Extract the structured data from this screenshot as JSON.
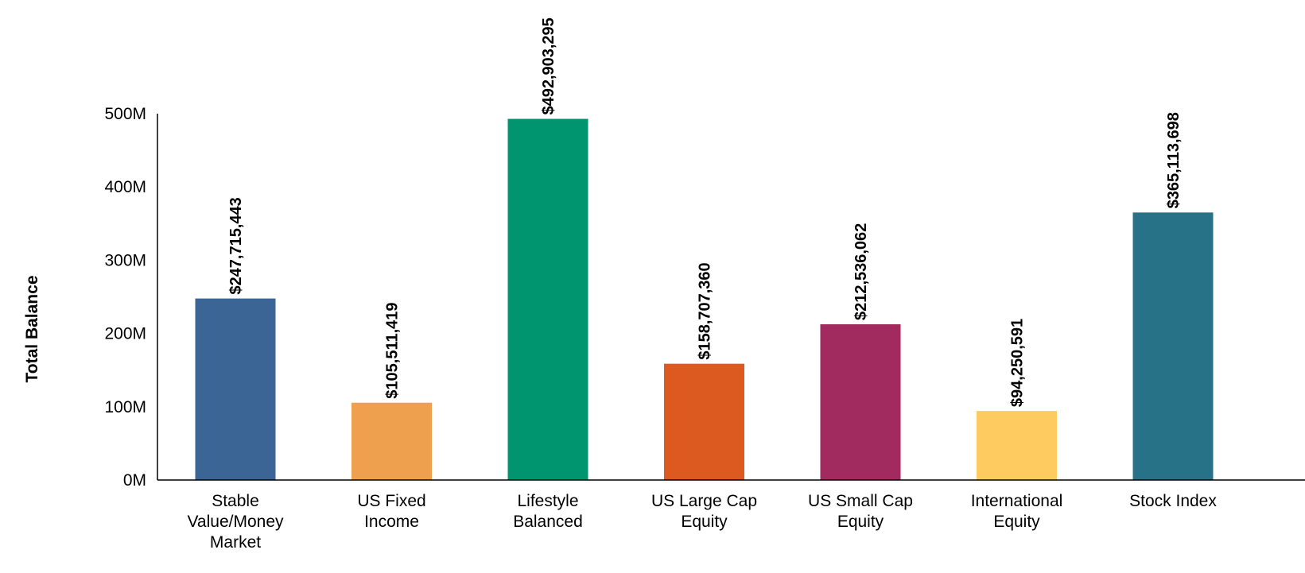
{
  "chart_data": {
    "type": "bar",
    "title": "",
    "xlabel": "",
    "ylabel": "Total Balance",
    "ylim": [
      0,
      500000000
    ],
    "yticks": [
      {
        "value": 0,
        "label": "0M"
      },
      {
        "value": 100000000,
        "label": "100M"
      },
      {
        "value": 200000000,
        "label": "200M"
      },
      {
        "value": 300000000,
        "label": "300M"
      },
      {
        "value": 400000000,
        "label": "400M"
      },
      {
        "value": 500000000,
        "label": "500M"
      }
    ],
    "grid": false,
    "legend": "none",
    "categories": [
      [
        "Stable",
        "Value/Money",
        "Market"
      ],
      [
        "US Fixed",
        "Income"
      ],
      [
        "Lifestyle",
        "Balanced"
      ],
      [
        "US Large Cap",
        "Equity"
      ],
      [
        "US Small Cap",
        "Equity"
      ],
      [
        "International",
        "Equity"
      ],
      [
        "Stock Index"
      ]
    ],
    "values": [
      247715443,
      105511419,
      492903295,
      158707360,
      212536062,
      94250591,
      365113698
    ],
    "data_labels": [
      "$247,715,443",
      "$105,511,419",
      "$492,903,295",
      "$158,707,360",
      "$212,536,062",
      "$94,250,591",
      "$365,113,698"
    ],
    "colors": [
      "#3a6595",
      "#eea04e",
      "#00956f",
      "#dc5a1f",
      "#a12b5e",
      "#fdcb5f",
      "#287288"
    ]
  }
}
